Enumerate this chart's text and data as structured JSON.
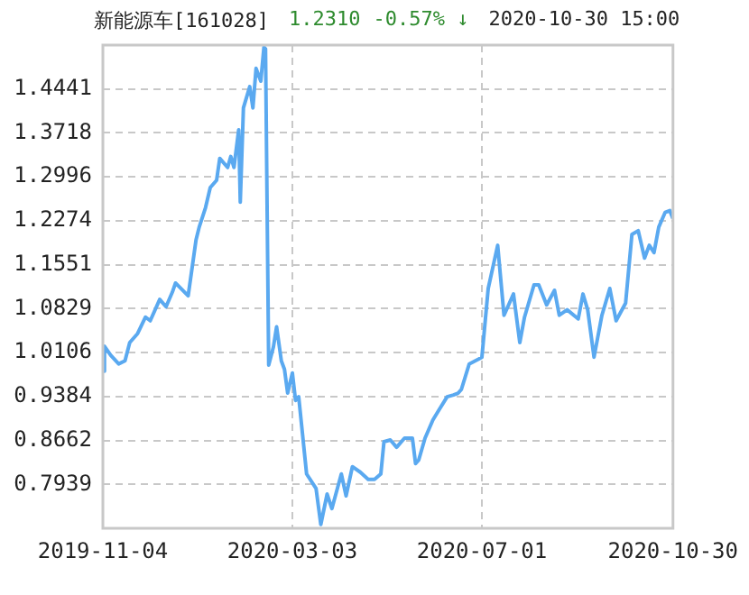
{
  "chart_data": {
    "type": "line",
    "title": "新能源车[161028]",
    "annotations": [
      "1.2310",
      "-0.57% ↓",
      "2020-10-30 15:00"
    ],
    "x": [
      "2019-11-04",
      "2019-11-05",
      "2019-11-09",
      "2019-11-14",
      "2019-11-18",
      "2019-11-21",
      "2019-11-26",
      "2019-12-01",
      "2019-12-04",
      "2019-12-10",
      "2019-12-14",
      "2019-12-18",
      "2019-12-20",
      "2019-12-28",
      "2020-01-02",
      "2020-01-04",
      "2020-01-08",
      "2020-01-11",
      "2020-01-15",
      "2020-01-17",
      "2020-01-22",
      "2020-01-24",
      "2020-01-26",
      "2020-01-29",
      "2020-01-30",
      "2020-02-01",
      "2020-02-05",
      "2020-02-07",
      "2020-02-09",
      "2020-02-12",
      "2020-02-14",
      "2020-02-15",
      "2020-02-17",
      "2020-02-20",
      "2020-02-22",
      "2020-02-25",
      "2020-02-27",
      "2020-02-29",
      "2020-03-03",
      "2020-03-05",
      "2020-03-07",
      "2020-03-12",
      "2020-03-18",
      "2020-03-21",
      "2020-03-25",
      "2020-03-28",
      "2020-04-03",
      "2020-04-06",
      "2020-04-10",
      "2020-04-15",
      "2020-04-20",
      "2020-04-24",
      "2020-04-28",
      "2020-04-30",
      "2020-05-04",
      "2020-05-08",
      "2020-05-13",
      "2020-05-18",
      "2020-05-20",
      "2020-05-22",
      "2020-05-26",
      "2020-05-31",
      "2020-06-04",
      "2020-06-09",
      "2020-06-13",
      "2020-06-16",
      "2020-06-18",
      "2020-06-23",
      "2020-06-29",
      "2020-07-01",
      "2020-07-05",
      "2020-07-11",
      "2020-07-15",
      "2020-07-21",
      "2020-07-25",
      "2020-07-28",
      "2020-08-03",
      "2020-08-06",
      "2020-08-11",
      "2020-08-16",
      "2020-08-19",
      "2020-08-24",
      "2020-08-31",
      "2020-09-03",
      "2020-09-06",
      "2020-09-10",
      "2020-09-15",
      "2020-09-20",
      "2020-09-24",
      "2020-09-30",
      "2020-10-04",
      "2020-10-08",
      "2020-10-12",
      "2020-10-15",
      "2020-10-18",
      "2020-10-21",
      "2020-10-25",
      "2020-10-28",
      "2020-10-30"
    ],
    "series": [
      {
        "color": "#5aa9f0",
        "values": [
          0.98,
          1.021,
          1.006,
          0.992,
          0.997,
          1.027,
          1.042,
          1.069,
          1.063,
          1.098,
          1.086,
          1.11,
          1.125,
          1.104,
          1.196,
          1.217,
          1.249,
          1.282,
          1.294,
          1.33,
          1.315,
          1.333,
          1.315,
          1.377,
          1.258,
          1.413,
          1.448,
          1.413,
          1.478,
          1.457,
          1.513,
          1.51,
          0.99,
          1.02,
          1.053,
          0.997,
          0.983,
          0.944,
          0.977,
          0.932,
          0.938,
          0.811,
          0.787,
          0.728,
          0.778,
          0.754,
          0.811,
          0.775,
          0.823,
          0.814,
          0.802,
          0.802,
          0.811,
          0.864,
          0.867,
          0.855,
          0.87,
          0.87,
          0.828,
          0.834,
          0.87,
          0.9,
          0.917,
          0.938,
          0.941,
          0.944,
          0.95,
          0.992,
          1.0,
          1.003,
          1.116,
          1.187,
          1.072,
          1.107,
          1.027,
          1.069,
          1.122,
          1.122,
          1.089,
          1.113,
          1.072,
          1.081,
          1.066,
          1.107,
          1.081,
          1.003,
          1.072,
          1.116,
          1.063,
          1.092,
          1.205,
          1.211,
          1.166,
          1.187,
          1.175,
          1.217,
          1.241,
          1.244,
          1.231
        ]
      }
    ],
    "xlim": [
      "2019-11-04",
      "2020-10-30"
    ],
    "xticks": [
      "2019-11-04",
      "2020-03-03",
      "2020-07-01",
      "2020-10-30"
    ],
    "ylim": [
      0.7217,
      1.5163
    ],
    "yticks": [
      0.7939,
      0.8662,
      0.9384,
      1.0106,
      1.0829,
      1.1551,
      1.2274,
      1.2996,
      1.3718,
      1.4441
    ],
    "grid": true,
    "legend": false,
    "marker": "none",
    "line_style": "solid"
  }
}
